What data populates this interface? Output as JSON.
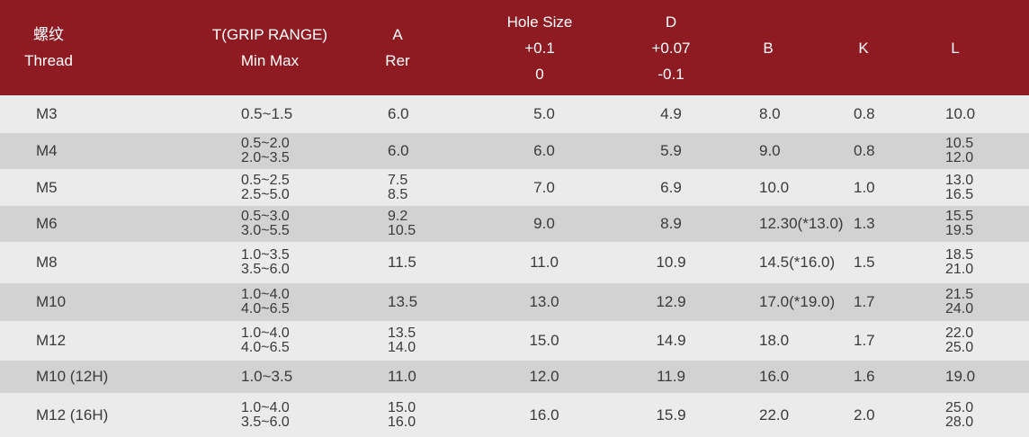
{
  "header": {
    "thread": [
      "螺纹",
      "Thread"
    ],
    "grip": [
      "T(GRIP RANGE)",
      "Min Max"
    ],
    "a": [
      "A",
      "Rer"
    ],
    "hole": [
      "Hole Size",
      "+0.1",
      "0"
    ],
    "d": [
      "D",
      "+0.07",
      "-0.1"
    ],
    "b": [
      "B"
    ],
    "k": [
      "K"
    ],
    "l": [
      "L"
    ]
  },
  "colors": {
    "header_bg": "#8e1b22",
    "row_light": "#ebebeb",
    "row_dark": "#d2d2d2",
    "text": "#3a3a3a"
  },
  "rows": [
    {
      "thread": "M3",
      "grip": [
        "0.5~1.5"
      ],
      "a": [
        "6.0"
      ],
      "hole": "5.0",
      "d": "4.9",
      "b": "8.0",
      "k": "0.8",
      "l": [
        "10.0"
      ]
    },
    {
      "thread": "M4",
      "grip": [
        "0.5~2.0",
        "2.0~3.5"
      ],
      "a": [
        "6.0"
      ],
      "hole": "6.0",
      "d": "5.9",
      "b": "9.0",
      "k": "0.8",
      "l": [
        "10.5",
        "12.0"
      ]
    },
    {
      "thread": "M5",
      "grip": [
        "0.5~2.5",
        "2.5~5.0"
      ],
      "a": [
        "7.5",
        "8.5"
      ],
      "hole": "7.0",
      "d": "6.9",
      "b": "10.0",
      "k": "1.0",
      "l": [
        "13.0",
        "16.5"
      ]
    },
    {
      "thread": "M6",
      "grip": [
        "0.5~3.0",
        "3.0~5.5"
      ],
      "a": [
        "9.2",
        "10.5"
      ],
      "hole": "9.0",
      "d": "8.9",
      "b": "12.30(*13.0)",
      "k": "1.3",
      "l": [
        "15.5",
        "19.5"
      ]
    },
    {
      "thread": "M8",
      "grip": [
        "1.0~3.5",
        "3.5~6.0"
      ],
      "a": [
        "11.5"
      ],
      "hole": "11.0",
      "d": "10.9",
      "b": "14.5(*16.0)",
      "k": "1.5",
      "l": [
        "18.5",
        "21.0"
      ]
    },
    {
      "thread": "M10",
      "grip": [
        "1.0~4.0",
        "4.0~6.5"
      ],
      "a": [
        "13.5"
      ],
      "hole": "13.0",
      "d": "12.9",
      "b": "17.0(*19.0)",
      "k": "1.7",
      "l": [
        "21.5",
        "24.0"
      ]
    },
    {
      "thread": "M12",
      "grip": [
        "1.0~4.0",
        "4.0~6.5"
      ],
      "a": [
        "13.5",
        "14.0"
      ],
      "hole": "15.0",
      "d": "14.9",
      "b": "18.0",
      "k": "1.7",
      "l": [
        "22.0",
        "25.0"
      ]
    },
    {
      "thread": "M10 (12H)",
      "grip": [
        "1.0~3.5"
      ],
      "a": [
        "11.0"
      ],
      "hole": "12.0",
      "d": "11.9",
      "b": "16.0",
      "k": "1.6",
      "l": [
        "19.0"
      ]
    },
    {
      "thread": "M12 (16H)",
      "grip": [
        "1.0~4.0",
        "3.5~6.0"
      ],
      "a": [
        "15.0",
        "16.0"
      ],
      "hole": "16.0",
      "d": "15.9",
      "b": "22.0",
      "k": "2.0",
      "l": [
        "25.0",
        "28.0"
      ]
    }
  ]
}
